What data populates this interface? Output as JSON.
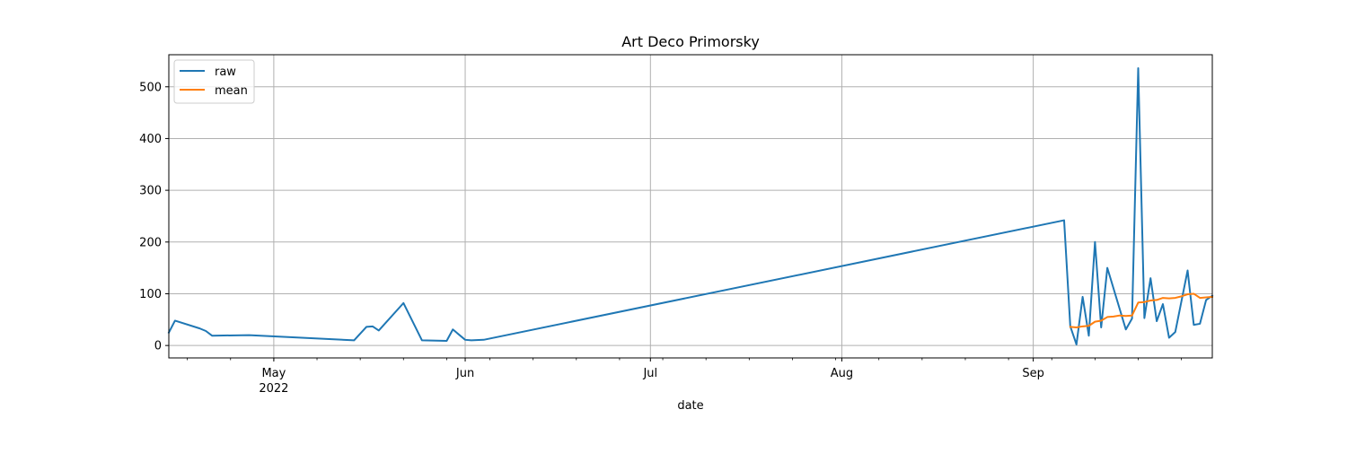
{
  "chart_data": {
    "type": "line",
    "title": "Art Deco Primorsky",
    "xlabel": "date",
    "ylabel": "",
    "xlim": [
      "2022-04-14",
      "2022-09-30"
    ],
    "ylim": [
      -24,
      562
    ],
    "grid": true,
    "legend_position": "top-left",
    "x_ticks": [
      {
        "date": "2022-05-01",
        "label": "May",
        "sublabel": "2022"
      },
      {
        "date": "2022-06-01",
        "label": "Jun",
        "sublabel": ""
      },
      {
        "date": "2022-07-01",
        "label": "Jul",
        "sublabel": ""
      },
      {
        "date": "2022-08-01",
        "label": "Aug",
        "sublabel": ""
      },
      {
        "date": "2022-09-01",
        "label": "Sep",
        "sublabel": ""
      }
    ],
    "y_ticks": [
      0,
      100,
      200,
      300,
      400,
      500
    ],
    "series": [
      {
        "name": "raw",
        "color": "#1f77b4",
        "points": [
          [
            "2022-04-14",
            25
          ],
          [
            "2022-04-15",
            48
          ],
          [
            "2022-04-19",
            33
          ],
          [
            "2022-04-20",
            28
          ],
          [
            "2022-04-21",
            19
          ],
          [
            "2022-04-27",
            20
          ],
          [
            "2022-05-14",
            10
          ],
          [
            "2022-05-16",
            36
          ],
          [
            "2022-05-17",
            37
          ],
          [
            "2022-05-18",
            29
          ],
          [
            "2022-05-22",
            82
          ],
          [
            "2022-05-25",
            10
          ],
          [
            "2022-05-29",
            9
          ],
          [
            "2022-05-30",
            31
          ],
          [
            "2022-06-01",
            11
          ],
          [
            "2022-06-02",
            10
          ],
          [
            "2022-06-04",
            11
          ],
          [
            "2022-09-06",
            242
          ],
          [
            "2022-09-07",
            37
          ],
          [
            "2022-09-08",
            2
          ],
          [
            "2022-09-09",
            94
          ],
          [
            "2022-09-10",
            19
          ],
          [
            "2022-09-11",
            200
          ],
          [
            "2022-09-12",
            35
          ],
          [
            "2022-09-13",
            150
          ],
          [
            "2022-09-16",
            31
          ],
          [
            "2022-09-17",
            52
          ],
          [
            "2022-09-18",
            536
          ],
          [
            "2022-09-19",
            53
          ],
          [
            "2022-09-20",
            130
          ],
          [
            "2022-09-21",
            47
          ],
          [
            "2022-09-22",
            80
          ],
          [
            "2022-09-23",
            15
          ],
          [
            "2022-09-24",
            26
          ],
          [
            "2022-09-26",
            145
          ],
          [
            "2022-09-27",
            40
          ],
          [
            "2022-09-28",
            42
          ],
          [
            "2022-09-29",
            88
          ],
          [
            "2022-09-30",
            96
          ]
        ]
      },
      {
        "name": "mean",
        "color": "#ff7f0e",
        "points": [
          [
            "2022-09-07",
            36
          ],
          [
            "2022-09-08",
            35
          ],
          [
            "2022-09-09",
            37
          ],
          [
            "2022-09-10",
            38
          ],
          [
            "2022-09-11",
            46
          ],
          [
            "2022-09-12",
            48
          ],
          [
            "2022-09-13",
            55
          ],
          [
            "2022-09-14",
            56
          ],
          [
            "2022-09-15",
            58
          ],
          [
            "2022-09-16",
            57
          ],
          [
            "2022-09-17",
            58
          ],
          [
            "2022-09-18",
            83
          ],
          [
            "2022-09-19",
            84
          ],
          [
            "2022-09-20",
            87
          ],
          [
            "2022-09-21",
            88
          ],
          [
            "2022-09-22",
            92
          ],
          [
            "2022-09-23",
            91
          ],
          [
            "2022-09-24",
            92
          ],
          [
            "2022-09-25",
            95
          ],
          [
            "2022-09-26",
            99
          ],
          [
            "2022-09-27",
            100
          ],
          [
            "2022-09-28",
            92
          ],
          [
            "2022-09-29",
            93
          ],
          [
            "2022-09-30",
            94
          ]
        ]
      }
    ]
  }
}
